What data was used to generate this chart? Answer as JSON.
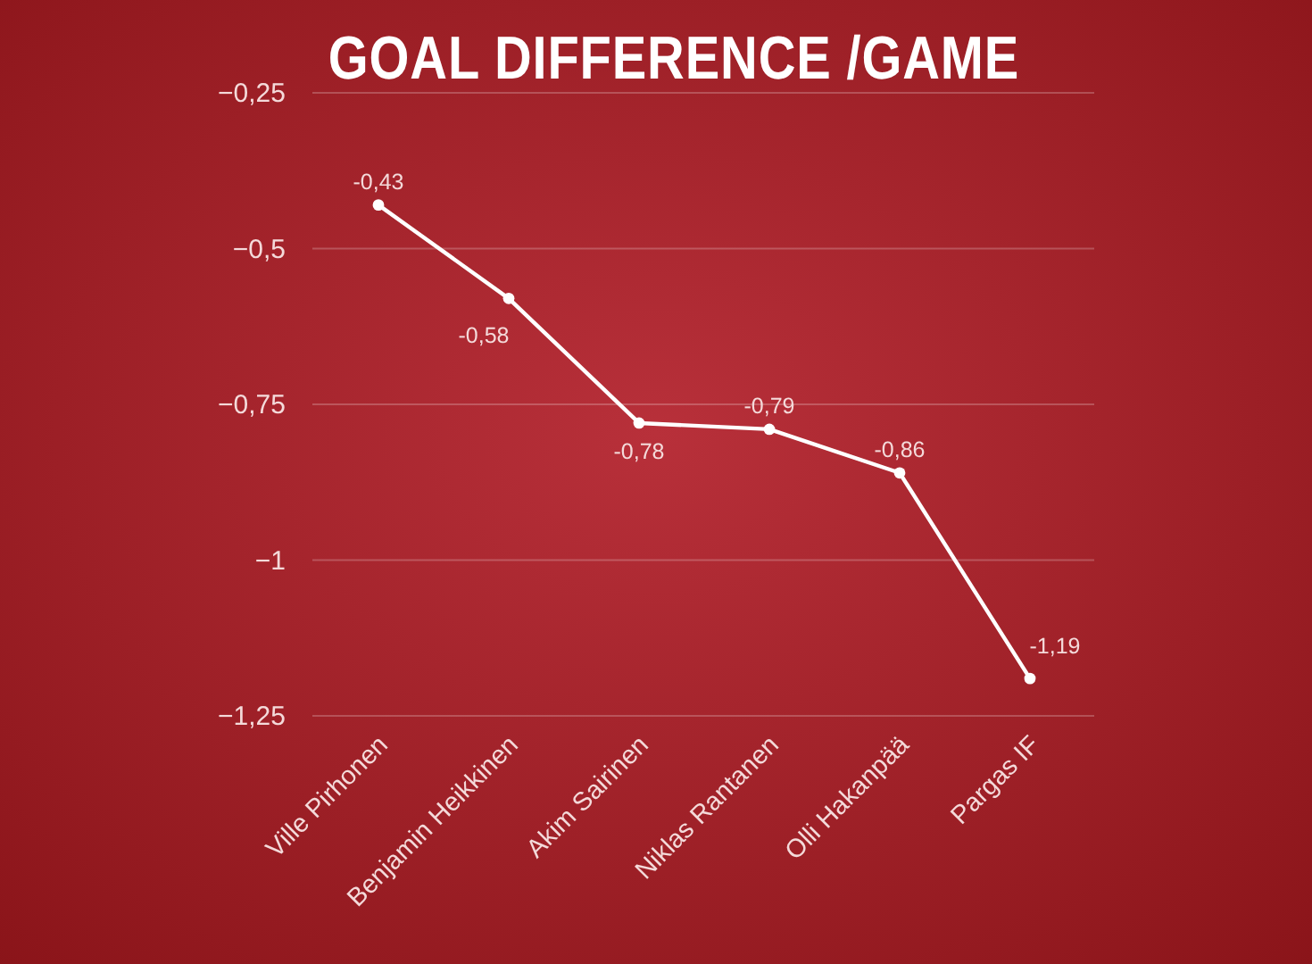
{
  "chart_data": {
    "type": "line",
    "title": "GOAL DIFFERENCE /GAME",
    "categories": [
      "Ville Pirhonen",
      "Benjamin Heikkinen",
      "Akim Sairinen",
      "Niklas Rantanen",
      "Olli Hakanpää",
      "Pargas IF"
    ],
    "series": [
      {
        "color": "#ffffff",
        "values": [
          -0.43,
          -0.58,
          -0.78,
          -0.79,
          -0.86,
          -1.19
        ],
        "value_labels": [
          "-0,43",
          "-0,58",
          "-0,78",
          "-0,79",
          "-0,86",
          "-1,19"
        ]
      }
    ],
    "ylim": [
      -1.25,
      -0.25
    ],
    "yticks": [
      {
        "value": -0.25,
        "label": "−0,25"
      },
      {
        "value": -0.5,
        "label": "−0,5"
      },
      {
        "value": -0.75,
        "label": "−0,75"
      },
      {
        "value": -1,
        "label": "−1"
      },
      {
        "value": -1.25,
        "label": "−1,25"
      }
    ],
    "grid": "y",
    "marker": "circle",
    "line_style": "solid"
  }
}
